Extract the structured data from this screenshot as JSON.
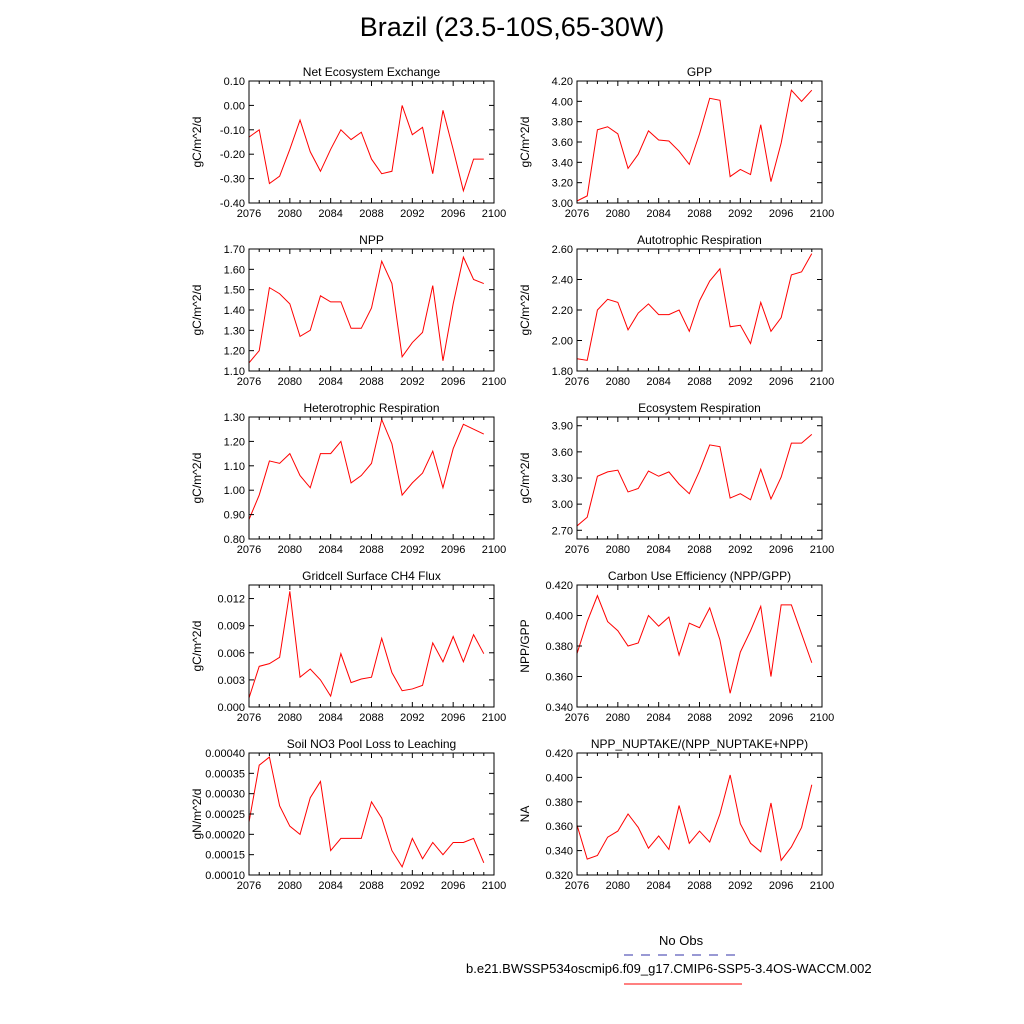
{
  "page": {
    "title": "Brazil (23.5-10S,65-30W)"
  },
  "legend": {
    "obs_label": "No Obs",
    "obs_color": "#3333aa",
    "model_label": "b.e21.BWSSP534oscmip6.f09_g17.CMIP6-SSP5-3.4OS-WACCM.002",
    "model_color": "#ff0000"
  },
  "chart_data": [
    {
      "type": "line",
      "title": "Net Ecosystem Exchange",
      "xlabel": "",
      "ylabel": "gC/m^2/d",
      "xlim": [
        2076,
        2100
      ],
      "ylim": [
        -0.4,
        0.1
      ],
      "xticks": [
        2076,
        2080,
        2084,
        2088,
        2092,
        2096,
        2100
      ],
      "yticks": [
        "-0.40",
        "-0.30",
        "-0.20",
        "-0.10",
        "0.00",
        "0.10"
      ],
      "x": [
        2075,
        2076,
        2077,
        2078,
        2079,
        2080,
        2081,
        2082,
        2083,
        2084,
        2085,
        2086,
        2087,
        2088,
        2089,
        2090,
        2091,
        2092,
        2093,
        2094,
        2095,
        2096,
        2097,
        2098,
        2099
      ],
      "values": [
        -0.12,
        -0.13,
        -0.1,
        -0.32,
        -0.29,
        -0.18,
        -0.06,
        -0.19,
        -0.27,
        -0.18,
        -0.1,
        -0.14,
        -0.11,
        -0.22,
        -0.28,
        -0.27,
        0.0,
        -0.12,
        -0.09,
        -0.28,
        -0.02,
        -0.18,
        -0.35,
        -0.22,
        -0.22
      ]
    },
    {
      "type": "line",
      "title": "GPP",
      "xlabel": "",
      "ylabel": "gC/m^2/d",
      "xlim": [
        2076,
        2100
      ],
      "ylim": [
        3.0,
        4.2
      ],
      "xticks": [
        2076,
        2080,
        2084,
        2088,
        2092,
        2096,
        2100
      ],
      "yticks": [
        "3.00",
        "3.20",
        "3.40",
        "3.60",
        "3.80",
        "4.00",
        "4.20"
      ],
      "x": [
        2075,
        2076,
        2077,
        2078,
        2079,
        2080,
        2081,
        2082,
        2083,
        2084,
        2085,
        2086,
        2087,
        2088,
        2089,
        2090,
        2091,
        2092,
        2093,
        2094,
        2095,
        2096,
        2097,
        2098,
        2099
      ],
      "values": [
        3.0,
        3.02,
        3.07,
        3.72,
        3.75,
        3.68,
        3.34,
        3.48,
        3.71,
        3.62,
        3.61,
        3.51,
        3.38,
        3.68,
        4.03,
        4.01,
        3.26,
        3.33,
        3.28,
        3.77,
        3.21,
        3.59,
        4.11,
        4.0,
        4.11
      ]
    },
    {
      "type": "line",
      "title": "NPP",
      "xlabel": "",
      "ylabel": "gC/m^2/d",
      "xlim": [
        2076,
        2100
      ],
      "ylim": [
        1.1,
        1.7
      ],
      "xticks": [
        2076,
        2080,
        2084,
        2088,
        2092,
        2096,
        2100
      ],
      "yticks": [
        "1.10",
        "1.20",
        "1.30",
        "1.40",
        "1.50",
        "1.60",
        "1.70"
      ],
      "x": [
        2075,
        2076,
        2077,
        2078,
        2079,
        2080,
        2081,
        2082,
        2083,
        2084,
        2085,
        2086,
        2087,
        2088,
        2089,
        2090,
        2091,
        2092,
        2093,
        2094,
        2095,
        2096,
        2097,
        2098,
        2099
      ],
      "values": [
        1.1,
        1.14,
        1.2,
        1.51,
        1.48,
        1.43,
        1.27,
        1.3,
        1.47,
        1.44,
        1.44,
        1.31,
        1.31,
        1.41,
        1.64,
        1.53,
        1.17,
        1.24,
        1.29,
        1.52,
        1.15,
        1.43,
        1.66,
        1.55,
        1.53
      ]
    },
    {
      "type": "line",
      "title": "Autotrophic Respiration",
      "xlabel": "",
      "ylabel": "gC/m^2/d",
      "xlim": [
        2076,
        2100
      ],
      "ylim": [
        1.8,
        2.6
      ],
      "xticks": [
        2076,
        2080,
        2084,
        2088,
        2092,
        2096,
        2100
      ],
      "yticks": [
        "1.80",
        "2.00",
        "2.20",
        "2.40",
        "2.60"
      ],
      "x": [
        2075,
        2076,
        2077,
        2078,
        2079,
        2080,
        2081,
        2082,
        2083,
        2084,
        2085,
        2086,
        2087,
        2088,
        2089,
        2090,
        2091,
        2092,
        2093,
        2094,
        2095,
        2096,
        2097,
        2098,
        2099
      ],
      "values": [
        1.9,
        1.88,
        1.87,
        2.2,
        2.27,
        2.25,
        2.07,
        2.18,
        2.24,
        2.17,
        2.17,
        2.2,
        2.06,
        2.26,
        2.39,
        2.47,
        2.09,
        2.1,
        1.98,
        2.25,
        2.06,
        2.15,
        2.43,
        2.45,
        2.57
      ]
    },
    {
      "type": "line",
      "title": "Heterotrophic Respiration",
      "xlabel": "",
      "ylabel": "gC/m^2/d",
      "xlim": [
        2076,
        2100
      ],
      "ylim": [
        0.8,
        1.3
      ],
      "xticks": [
        2076,
        2080,
        2084,
        2088,
        2092,
        2096,
        2100
      ],
      "yticks": [
        "0.80",
        "0.90",
        "1.00",
        "1.10",
        "1.20",
        "1.30"
      ],
      "x": [
        2075,
        2076,
        2077,
        2078,
        2079,
        2080,
        2081,
        2082,
        2083,
        2084,
        2085,
        2086,
        2087,
        2088,
        2089,
        2090,
        2091,
        2092,
        2093,
        2094,
        2095,
        2096,
        2097,
        2098,
        2099
      ],
      "values": [
        0.8,
        0.88,
        0.98,
        1.12,
        1.11,
        1.15,
        1.06,
        1.01,
        1.15,
        1.15,
        1.2,
        1.03,
        1.06,
        1.11,
        1.29,
        1.19,
        0.98,
        1.03,
        1.07,
        1.16,
        1.01,
        1.17,
        1.27,
        1.25,
        1.23
      ]
    },
    {
      "type": "line",
      "title": "Ecosystem Respiration",
      "xlabel": "",
      "ylabel": "gC/m^2/d",
      "xlim": [
        2076,
        2100
      ],
      "ylim": [
        2.6,
        4.0
      ],
      "xticks": [
        2076,
        2080,
        2084,
        2088,
        2092,
        2096,
        2100
      ],
      "yticks": [
        "2.70",
        "3.00",
        "3.30",
        "3.60",
        "3.90"
      ],
      "x": [
        2075,
        2076,
        2077,
        2078,
        2079,
        2080,
        2081,
        2082,
        2083,
        2084,
        2085,
        2086,
        2087,
        2088,
        2089,
        2090,
        2091,
        2092,
        2093,
        2094,
        2095,
        2096,
        2097,
        2098,
        2099
      ],
      "values": [
        2.7,
        2.75,
        2.85,
        3.32,
        3.37,
        3.39,
        3.14,
        3.18,
        3.38,
        3.32,
        3.37,
        3.23,
        3.12,
        3.38,
        3.68,
        3.66,
        3.07,
        3.12,
        3.05,
        3.4,
        3.06,
        3.31,
        3.7,
        3.7,
        3.8
      ]
    },
    {
      "type": "line",
      "title": "Gridcell Surface CH4 Flux",
      "xlabel": "",
      "ylabel": "gC/m^2/d",
      "xlim": [
        2076,
        2100
      ],
      "ylim": [
        0.0,
        0.0135
      ],
      "xticks": [
        2076,
        2080,
        2084,
        2088,
        2092,
        2096,
        2100
      ],
      "yticks": [
        "0.000",
        "0.003",
        "0.006",
        "0.009",
        "0.012"
      ],
      "x": [
        2075,
        2076,
        2077,
        2078,
        2079,
        2080,
        2081,
        2082,
        2083,
        2084,
        2085,
        2086,
        2087,
        2088,
        2089,
        2090,
        2091,
        2092,
        2093,
        2094,
        2095,
        2096,
        2097,
        2098,
        2099
      ],
      "values": [
        0.0005,
        0.001,
        0.0045,
        0.0048,
        0.0055,
        0.0128,
        0.0033,
        0.0042,
        0.003,
        0.0012,
        0.0059,
        0.0027,
        0.0031,
        0.0033,
        0.0076,
        0.0038,
        0.0018,
        0.002,
        0.0024,
        0.0071,
        0.005,
        0.0078,
        0.005,
        0.008,
        0.0059
      ]
    },
    {
      "type": "line",
      "title": "Carbon Use Efficiency (NPP/GPP)",
      "xlabel": "",
      "ylabel": "NPP/GPP",
      "xlim": [
        2076,
        2100
      ],
      "ylim": [
        0.34,
        0.42
      ],
      "xticks": [
        2076,
        2080,
        2084,
        2088,
        2092,
        2096,
        2100
      ],
      "yticks": [
        "0.340",
        "0.360",
        "0.380",
        "0.400",
        "0.420"
      ],
      "x": [
        2075,
        2076,
        2077,
        2078,
        2079,
        2080,
        2081,
        2082,
        2083,
        2084,
        2085,
        2086,
        2087,
        2088,
        2089,
        2090,
        2091,
        2092,
        2093,
        2094,
        2095,
        2096,
        2097,
        2098,
        2099
      ],
      "values": [
        0.365,
        0.375,
        0.396,
        0.413,
        0.396,
        0.39,
        0.38,
        0.382,
        0.4,
        0.393,
        0.399,
        0.374,
        0.395,
        0.392,
        0.405,
        0.384,
        0.349,
        0.376,
        0.39,
        0.406,
        0.36,
        0.407,
        0.407,
        0.388,
        0.369
      ]
    },
    {
      "type": "line",
      "title": "Soil NO3 Pool Loss to Leaching",
      "xlabel": "",
      "ylabel": "gN/m^2/d",
      "xlim": [
        2076,
        2100
      ],
      "ylim": [
        0.0001,
        0.0004
      ],
      "xticks": [
        2076,
        2080,
        2084,
        2088,
        2092,
        2096,
        2100
      ],
      "yticks": [
        "0.00010",
        "0.00015",
        "0.00020",
        "0.00025",
        "0.00030",
        "0.00035",
        "0.00040"
      ],
      "x": [
        2075,
        2076,
        2077,
        2078,
        2079,
        2080,
        2081,
        2082,
        2083,
        2084,
        2085,
        2086,
        2087,
        2088,
        2089,
        2090,
        2091,
        2092,
        2093,
        2094,
        2095,
        2096,
        2097,
        2098,
        2099
      ],
      "values": [
        0.00015,
        0.00023,
        0.00037,
        0.00039,
        0.00027,
        0.00022,
        0.0002,
        0.00029,
        0.00033,
        0.00016,
        0.00019,
        0.00019,
        0.00019,
        0.00028,
        0.00024,
        0.00016,
        0.00012,
        0.00019,
        0.00014,
        0.00018,
        0.00015,
        0.00018,
        0.00018,
        0.00019,
        0.00013
      ]
    },
    {
      "type": "line",
      "title": "NPP_NUPTAKE/(NPP_NUPTAKE+NPP)",
      "xlabel": "",
      "ylabel": "NA",
      "xlim": [
        2076,
        2100
      ],
      "ylim": [
        0.32,
        0.42
      ],
      "xticks": [
        2076,
        2080,
        2084,
        2088,
        2092,
        2096,
        2100
      ],
      "yticks": [
        "0.320",
        "0.340",
        "0.360",
        "0.380",
        "0.400",
        "0.420"
      ],
      "x": [
        2075,
        2076,
        2077,
        2078,
        2079,
        2080,
        2081,
        2082,
        2083,
        2084,
        2085,
        2086,
        2087,
        2088,
        2089,
        2090,
        2091,
        2092,
        2093,
        2094,
        2095,
        2096,
        2097,
        2098,
        2099
      ],
      "values": [
        0.37,
        0.361,
        0.333,
        0.336,
        0.351,
        0.356,
        0.37,
        0.359,
        0.342,
        0.352,
        0.341,
        0.377,
        0.346,
        0.356,
        0.347,
        0.37,
        0.402,
        0.362,
        0.346,
        0.339,
        0.379,
        0.332,
        0.343,
        0.359,
        0.394
      ]
    }
  ]
}
